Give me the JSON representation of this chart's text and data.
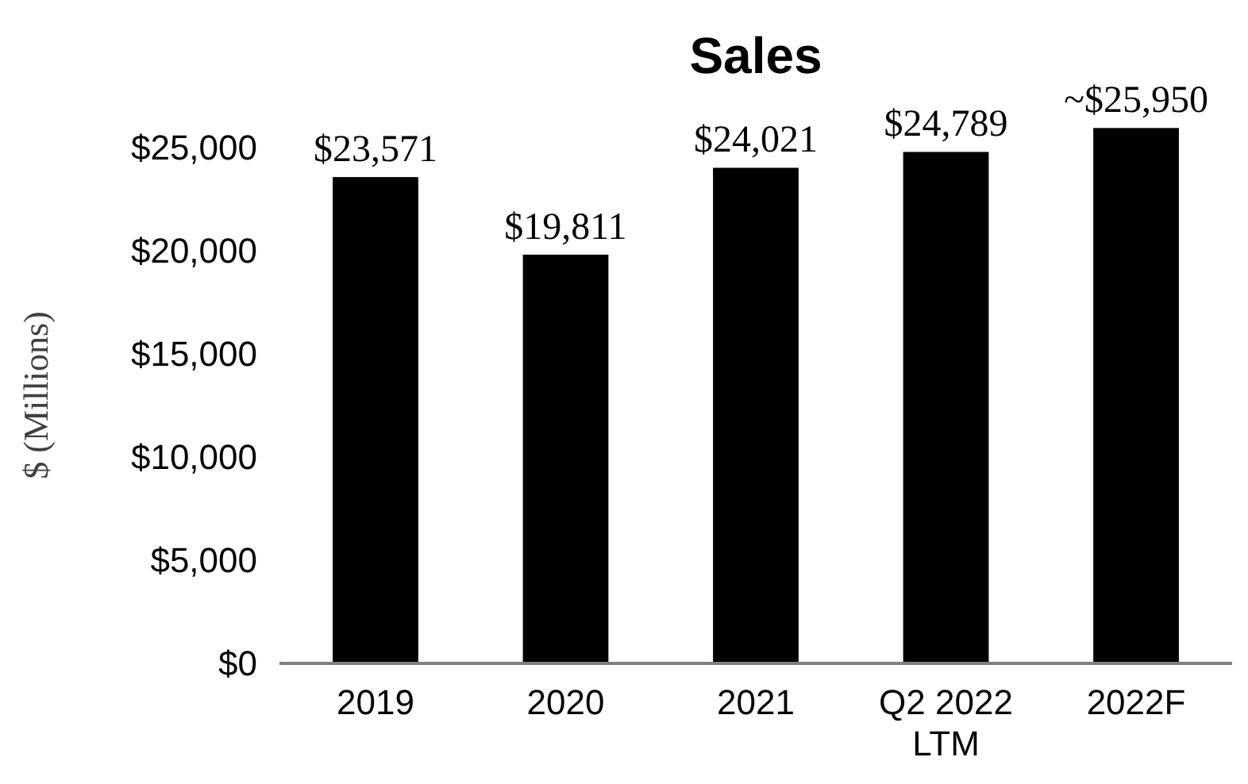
{
  "chart_data": {
    "type": "bar",
    "title": "Sales",
    "ylabel": "$ (Millions)",
    "categories": [
      "2019",
      "2020",
      "2021",
      "Q2 2022\nLTM",
      "2022F"
    ],
    "values": [
      23571,
      19811,
      24021,
      24789,
      25950
    ],
    "value_labels": [
      "$23,571",
      "$19,811",
      "$24,021",
      "$24,789",
      "~$25,950"
    ],
    "color": "#000000",
    "ylim": [
      0,
      26000
    ],
    "yticks": [
      {
        "value": 0,
        "label": "$0"
      },
      {
        "value": 5000,
        "label": "$5,000"
      },
      {
        "value": 10000,
        "label": "$10,000"
      },
      {
        "value": 15000,
        "label": "$15,000"
      },
      {
        "value": 20000,
        "label": "$20,000"
      },
      {
        "value": 25000,
        "label": "$25,000"
      }
    ]
  }
}
